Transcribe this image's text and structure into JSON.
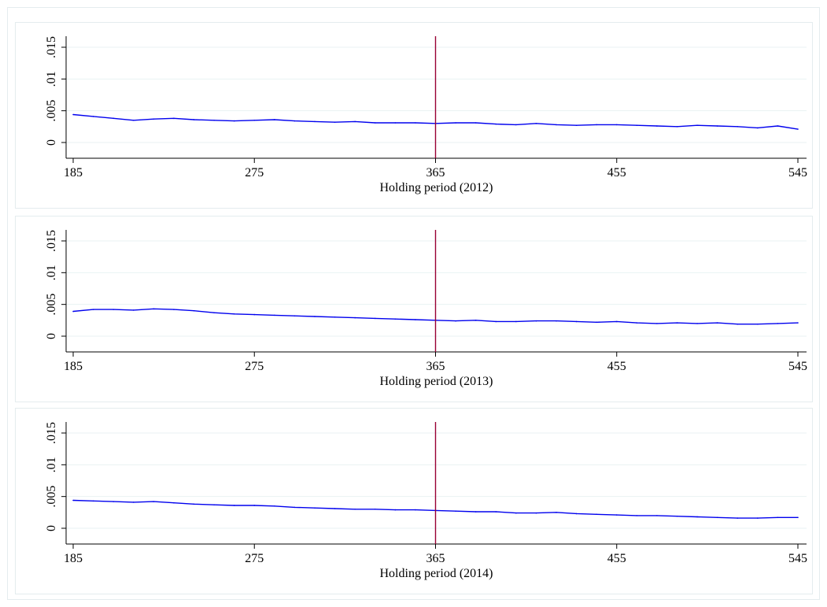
{
  "colors": {
    "series": "#0000ee",
    "reference_line": "#990033",
    "grid": "#eaf2f3",
    "panel_border": "#e4ecee",
    "axis": "#000000"
  },
  "chart_data": [
    {
      "type": "line",
      "xlabel": "Holding period (2012)",
      "ylabel": "",
      "xlim": [
        185,
        545
      ],
      "ylim": [
        0,
        0.015
      ],
      "x_ticks": [
        185,
        275,
        365,
        455,
        545
      ],
      "x_tick_labels": [
        "185",
        "275",
        "365",
        "455",
        "545"
      ],
      "y_ticks": [
        0,
        0.005,
        0.01,
        0.015
      ],
      "y_tick_labels": [
        "0",
        ".005",
        ".01",
        ".015"
      ],
      "grid": true,
      "reference_line_x": 365,
      "series": [
        {
          "x": [
            185,
            195,
            205,
            215,
            225,
            235,
            245,
            255,
            265,
            275,
            285,
            295,
            305,
            315,
            325,
            335,
            345,
            355,
            365,
            375,
            385,
            395,
            405,
            415,
            425,
            435,
            445,
            455,
            465,
            475,
            485,
            495,
            505,
            515,
            525,
            535,
            545
          ],
          "values": [
            0.0044,
            0.0041,
            0.0038,
            0.0035,
            0.0037,
            0.0038,
            0.0036,
            0.0035,
            0.0034,
            0.0035,
            0.0036,
            0.0034,
            0.0033,
            0.0032,
            0.0033,
            0.0031,
            0.0031,
            0.0031,
            0.003,
            0.0031,
            0.0031,
            0.0029,
            0.0028,
            0.003,
            0.0028,
            0.0027,
            0.0028,
            0.0028,
            0.0027,
            0.0026,
            0.0025,
            0.0027,
            0.0026,
            0.0025,
            0.0023,
            0.0026,
            0.0021
          ]
        }
      ]
    },
    {
      "type": "line",
      "xlabel": "Holding period (2013)",
      "ylabel": "",
      "xlim": [
        185,
        545
      ],
      "ylim": [
        0,
        0.015
      ],
      "x_ticks": [
        185,
        275,
        365,
        455,
        545
      ],
      "x_tick_labels": [
        "185",
        "275",
        "365",
        "455",
        "545"
      ],
      "y_ticks": [
        0,
        0.005,
        0.01,
        0.015
      ],
      "y_tick_labels": [
        "0",
        ".005",
        ".01",
        ".015"
      ],
      "grid": true,
      "reference_line_x": 365,
      "series": [
        {
          "x": [
            185,
            195,
            205,
            215,
            225,
            235,
            245,
            255,
            265,
            275,
            285,
            295,
            305,
            315,
            325,
            335,
            345,
            355,
            365,
            375,
            385,
            395,
            405,
            415,
            425,
            435,
            445,
            455,
            465,
            475,
            485,
            495,
            505,
            515,
            525,
            535,
            545
          ],
          "values": [
            0.0039,
            0.0042,
            0.0042,
            0.0041,
            0.0043,
            0.0042,
            0.004,
            0.0037,
            0.0035,
            0.0034,
            0.0033,
            0.0032,
            0.0031,
            0.003,
            0.0029,
            0.0028,
            0.0027,
            0.0026,
            0.0025,
            0.0024,
            0.0025,
            0.0023,
            0.0023,
            0.0024,
            0.0024,
            0.0023,
            0.0022,
            0.0023,
            0.0021,
            0.002,
            0.0021,
            0.002,
            0.0021,
            0.0019,
            0.0019,
            0.002,
            0.0021
          ]
        }
      ]
    },
    {
      "type": "line",
      "xlabel": "Holding period (2014)",
      "ylabel": "",
      "xlim": [
        185,
        545
      ],
      "ylim": [
        0,
        0.015
      ],
      "x_ticks": [
        185,
        275,
        365,
        455,
        545
      ],
      "x_tick_labels": [
        "185",
        "275",
        "365",
        "455",
        "545"
      ],
      "y_ticks": [
        0,
        0.005,
        0.01,
        0.015
      ],
      "y_tick_labels": [
        "0",
        ".005",
        ".01",
        ".015"
      ],
      "grid": true,
      "reference_line_x": 365,
      "series": [
        {
          "x": [
            185,
            195,
            205,
            215,
            225,
            235,
            245,
            255,
            265,
            275,
            285,
            295,
            305,
            315,
            325,
            335,
            345,
            355,
            365,
            375,
            385,
            395,
            405,
            415,
            425,
            435,
            445,
            455,
            465,
            475,
            485,
            495,
            505,
            515,
            525,
            535,
            545
          ],
          "values": [
            0.0044,
            0.0043,
            0.0042,
            0.0041,
            0.0042,
            0.004,
            0.0038,
            0.0037,
            0.0036,
            0.0036,
            0.0035,
            0.0033,
            0.0032,
            0.0031,
            0.003,
            0.003,
            0.0029,
            0.0029,
            0.0028,
            0.0027,
            0.0026,
            0.0026,
            0.0024,
            0.0024,
            0.0025,
            0.0023,
            0.0022,
            0.0021,
            0.002,
            0.002,
            0.0019,
            0.0018,
            0.0017,
            0.0016,
            0.0016,
            0.0017,
            0.0017
          ]
        }
      ]
    }
  ]
}
